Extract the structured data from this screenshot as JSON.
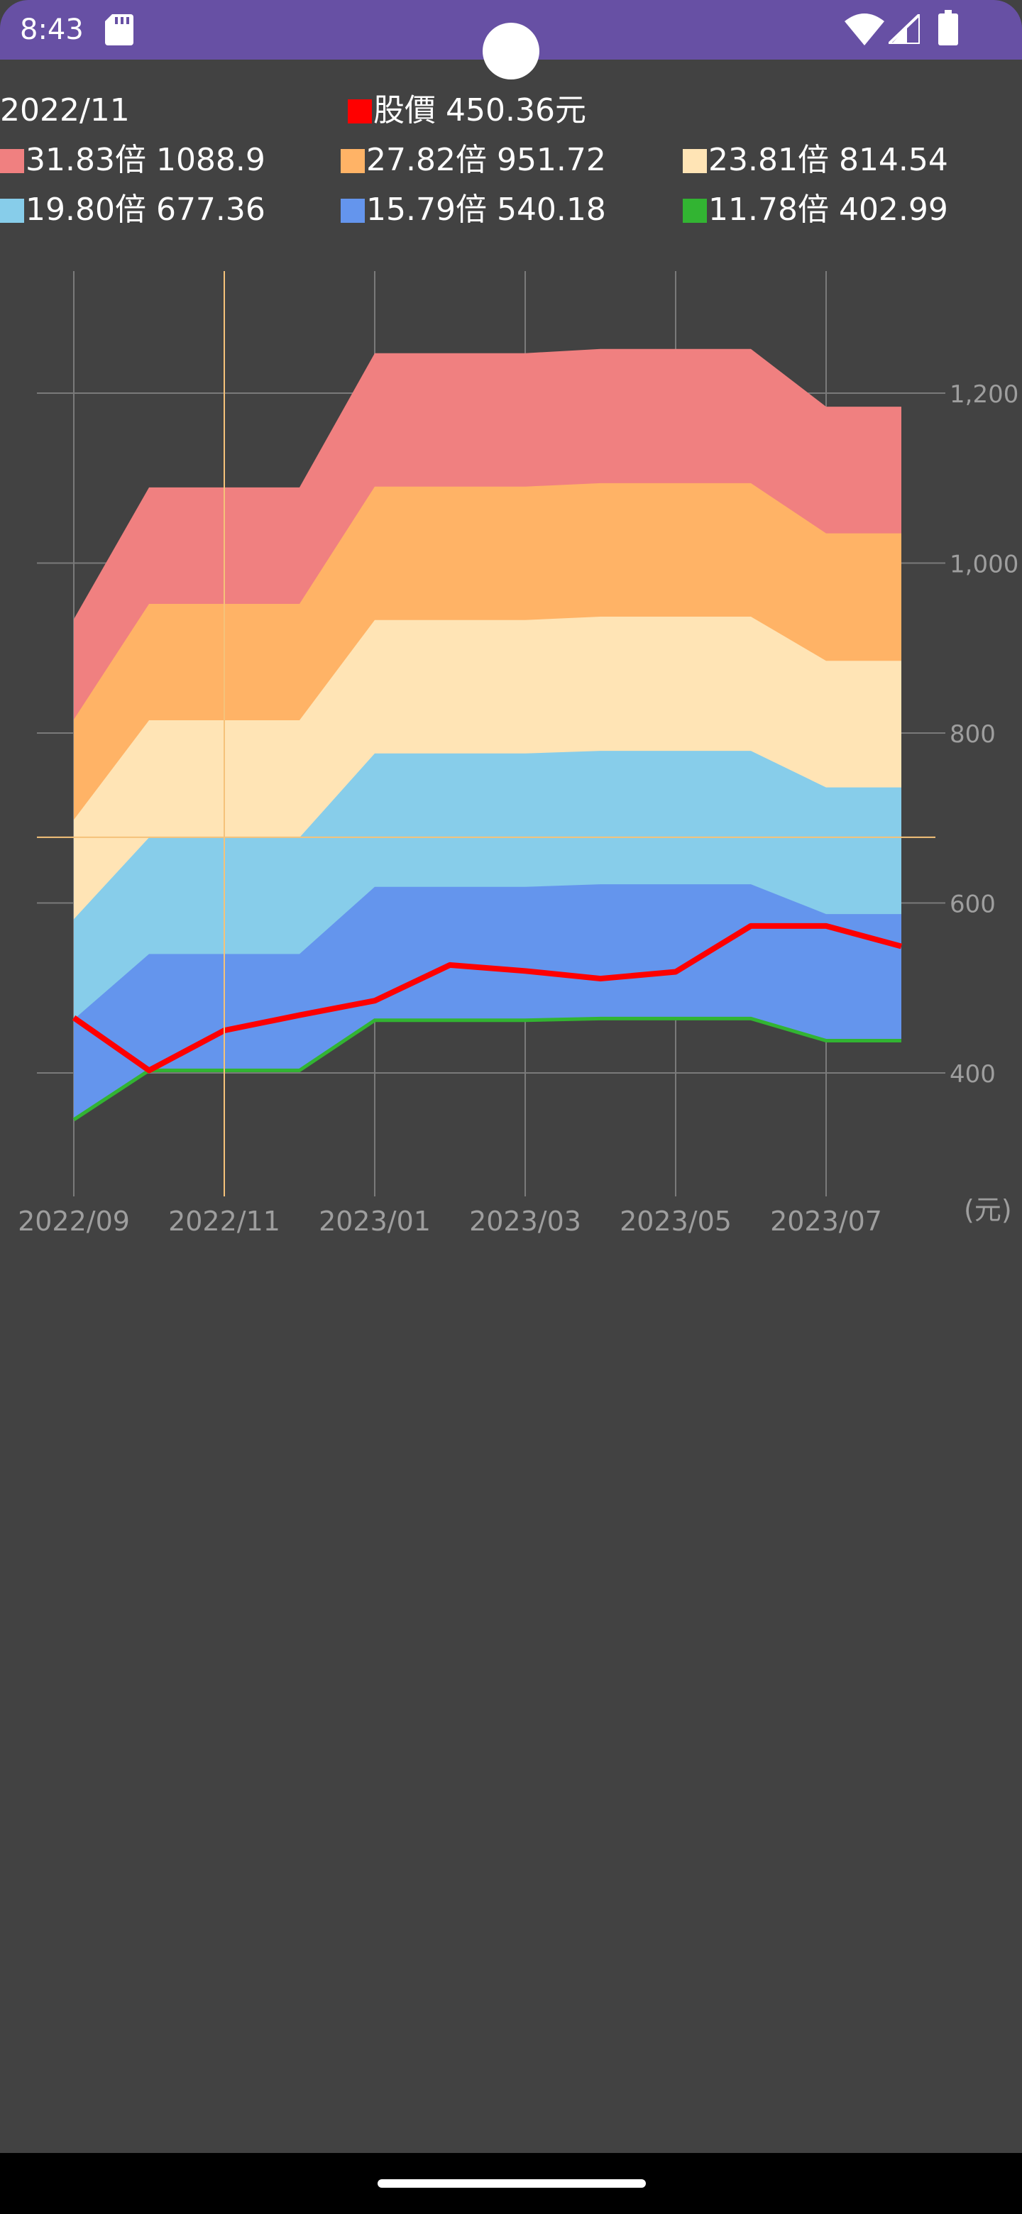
{
  "status_bar": {
    "time": "8:43",
    "background_color": "#6750a4",
    "icons": [
      "sd-card-icon",
      "camera-cutout",
      "wifi-icon",
      "signal-icon",
      "battery-icon"
    ]
  },
  "legend": {
    "date": "2022/11",
    "price": {
      "label": "股價 450.36元",
      "color": "#ff0000"
    },
    "bands": [
      {
        "label": "31.83倍 1088.9",
        "color": "#f08080"
      },
      {
        "label": "27.82倍 951.72",
        "color": "#ffb366"
      },
      {
        "label": "23.81倍 814.54",
        "color": "#ffe4b5"
      },
      {
        "label": "19.80倍 677.36",
        "color": "#87cdea"
      },
      {
        "label": "15.79倍 540.18",
        "color": "#6495ed"
      },
      {
        "label": "11.78倍 402.99",
        "color": "#32b432"
      }
    ]
  },
  "chart_data": {
    "type": "area",
    "x": [
      "2022/09",
      "2022/10",
      "2022/11",
      "2022/12",
      "2023/01",
      "2023/02",
      "2023/03",
      "2023/04",
      "2023/05",
      "2023/06",
      "2023/07",
      "2023/08"
    ],
    "x_tick_labels": [
      "2022/09",
      "2022/11",
      "2023/01",
      "2023/03",
      "2023/05",
      "2023/07"
    ],
    "y_tick_labels": [
      "400",
      "600",
      "800",
      "1,000",
      "1,200"
    ],
    "y_unit": "(元)",
    "ylim": [
      260,
      1370
    ],
    "grid": true,
    "crosshair": {
      "x": "2022/11",
      "y": 677.36
    },
    "series": [
      {
        "name": "31.83倍",
        "color": "#f08080",
        "values": [
          934,
          1089,
          1089,
          1089,
          1247,
          1247,
          1247,
          1252,
          1252,
          1252,
          1184,
          1184
        ]
      },
      {
        "name": "27.82倍",
        "color": "#ffb366",
        "values": [
          816,
          952,
          952,
          952,
          1090,
          1090,
          1090,
          1094,
          1094,
          1094,
          1035,
          1035
        ]
      },
      {
        "name": "23.81倍",
        "color": "#ffe4b5",
        "values": [
          698,
          815,
          815,
          815,
          933,
          933,
          933,
          937,
          937,
          937,
          885,
          885
        ]
      },
      {
        "name": "19.80倍",
        "color": "#87cdea",
        "values": [
          581,
          677,
          677,
          677,
          776,
          776,
          776,
          779,
          779,
          779,
          736,
          736
        ]
      },
      {
        "name": "15.79倍",
        "color": "#6495ed",
        "values": [
          463,
          540,
          540,
          540,
          619,
          619,
          619,
          622,
          622,
          622,
          587,
          587
        ]
      },
      {
        "name": "11.78倍",
        "color": "#32b432",
        "values": [
          345,
          403,
          403,
          403,
          462,
          462,
          462,
          464,
          464,
          464,
          438,
          438
        ]
      }
    ],
    "price_series": {
      "name": "股價",
      "color": "#ff0000",
      "values": [
        465,
        403,
        450,
        468,
        485,
        527,
        520,
        511,
        519,
        573,
        573,
        549
      ]
    }
  }
}
